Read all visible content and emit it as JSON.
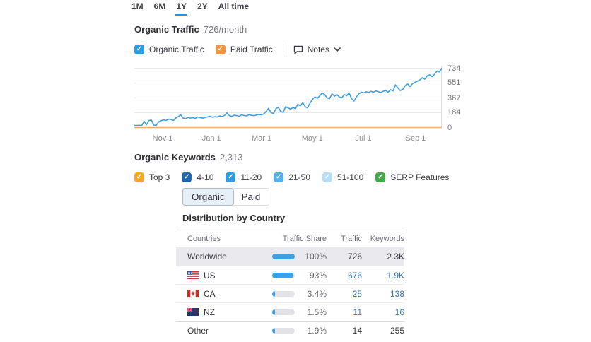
{
  "time_tabs": {
    "items": [
      {
        "label": "1M",
        "active": false
      },
      {
        "label": "6M",
        "active": false
      },
      {
        "label": "1Y",
        "active": true
      },
      {
        "label": "2Y",
        "active": false
      },
      {
        "label": "All time",
        "active": false
      }
    ]
  },
  "organic_traffic": {
    "title": "Organic Traffic",
    "value": "726/month",
    "legend": [
      {
        "label": "Organic Traffic",
        "color": "#2f9ce1",
        "checked": true
      },
      {
        "label": "Paid Traffic",
        "color": "#f59440",
        "checked": true
      }
    ],
    "notes_label": "Notes"
  },
  "chart_data": {
    "type": "line",
    "title": "Organic Traffic over 1Y",
    "ylim": [
      0,
      734
    ],
    "y_ticks": [
      734,
      551,
      367,
      184,
      0
    ],
    "x_ticks": [
      {
        "label": "Nov 1",
        "pos": 0.092
      },
      {
        "label": "Jan 1",
        "pos": 0.251
      },
      {
        "label": "Mar 1",
        "pos": 0.414
      },
      {
        "label": "May 1",
        "pos": 0.579
      },
      {
        "label": "Jul 1",
        "pos": 0.745
      },
      {
        "label": "Sep 1",
        "pos": 0.915
      }
    ],
    "series": [
      {
        "name": "Organic Traffic",
        "color": "#3d9fe0",
        "values": [
          26,
          25,
          28,
          24,
          78,
          34,
          88,
          92,
          30,
          28,
          72,
          85,
          95,
          88,
          105,
          100,
          88,
          118,
          135,
          158,
          118,
          110,
          125,
          117,
          122,
          114,
          130,
          122,
          117,
          125,
          132,
          140,
          128,
          134,
          130,
          144,
          137,
          151,
          183,
          147,
          139,
          154,
          147,
          141,
          157,
          149,
          144,
          159,
          151,
          147,
          154,
          161,
          157,
          168,
          198,
          238,
          184,
          174,
          232,
          252,
          198,
          188,
          258,
          243,
          228,
          248,
          233,
          288,
          268,
          308,
          258,
          243,
          303,
          348,
          378,
          363,
          393,
          428,
          408,
          368,
          358,
          418,
          388,
          408,
          378,
          368,
          408,
          393,
          428,
          358,
          328,
          378,
          418,
          438,
          428,
          443,
          433,
          448,
          438,
          453,
          443,
          433,
          448,
          458,
          438,
          468,
          453,
          528,
          488,
          458,
          473,
          518,
          538,
          508,
          543,
          558,
          573,
          588,
          618,
          598,
          638,
          653,
          628,
          658,
          698,
          688,
          734
        ]
      },
      {
        "name": "Paid Traffic",
        "color": "#f0ab74",
        "constant": 0
      }
    ]
  },
  "organic_keywords": {
    "title": "Organic Keywords",
    "value": "2,313",
    "legend": [
      {
        "label": "Top 3",
        "color": "#f0a92e",
        "checked": true
      },
      {
        "label": "4-10",
        "color": "#1f68ad",
        "checked": true
      },
      {
        "label": "11-20",
        "color": "#2f9ce1",
        "checked": true
      },
      {
        "label": "21-50",
        "color": "#54aee8",
        "checked": true
      },
      {
        "label": "51-100",
        "color": "#b7dcf5",
        "checked": true
      },
      {
        "label": "SERP Features",
        "color": "#43a847",
        "checked": true
      }
    ]
  },
  "toggle": {
    "options": [
      {
        "label": "Organic",
        "active": true
      },
      {
        "label": "Paid",
        "active": false
      }
    ]
  },
  "country_table": {
    "title": "Distribution by Country",
    "columns": [
      "Countries",
      "Traffic Share",
      "Traffic",
      "Keywords"
    ],
    "rows": [
      {
        "country": "Worldwide",
        "flag": null,
        "share_pct": 100,
        "share_label": "100%",
        "traffic": "726",
        "keywords": "2.3K",
        "selected": true,
        "links": false
      },
      {
        "country": "US",
        "flag": "us",
        "share_pct": 93,
        "share_label": "93%",
        "traffic": "676",
        "keywords": "1.9K",
        "selected": false,
        "links": true
      },
      {
        "country": "CA",
        "flag": "ca",
        "share_pct": 3.4,
        "share_label": "3.4%",
        "traffic": "25",
        "keywords": "138",
        "selected": false,
        "links": true
      },
      {
        "country": "NZ",
        "flag": "nz",
        "share_pct": 1.5,
        "share_label": "1.5%",
        "traffic": "11",
        "keywords": "16",
        "selected": false,
        "links": true
      },
      {
        "country": "Other",
        "flag": null,
        "share_pct": 1.9,
        "share_label": "1.9%",
        "traffic": "14",
        "keywords": "255",
        "selected": false,
        "links": false
      }
    ]
  }
}
